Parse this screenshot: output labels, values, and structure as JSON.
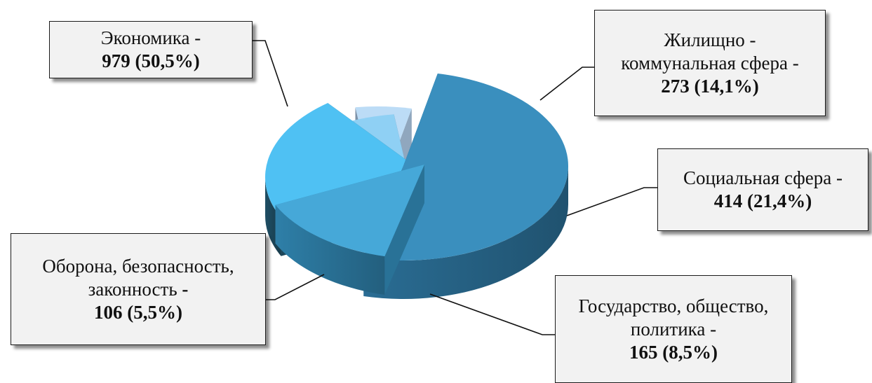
{
  "chart_data": {
    "type": "pie",
    "title": "",
    "exploded": true,
    "three_d": true,
    "slices": [
      {
        "name": "Экономика -",
        "value_label": "979 (50,5%)",
        "value": 979,
        "percent": 50.5,
        "color": "#3a8fbe",
        "side_color": "#2a6d94"
      },
      {
        "name": "Жилищно - коммунальная сфера -",
        "value_label": "273 (14,1%)",
        "value": 273,
        "percent": 14.1,
        "color": "#46a8d8",
        "side_color": "#2e7fa8"
      },
      {
        "name": "Социальная сфера -",
        "value_label": "414 (21,4%)",
        "value": 414,
        "percent": 21.4,
        "color": "#4fc1f3",
        "side_color": "#1f4e64"
      },
      {
        "name": "Государство, общество, политика -",
        "value_label": "165 (8,5%)",
        "value": 165,
        "percent": 8.5,
        "color": "#8fd0f4",
        "side_color": "#4a6f8a"
      },
      {
        "name": "Оборона, безопасность, законность",
        "name_suffix": " -",
        "value_label": "106 (5,5%)",
        "value": 106,
        "percent": 5.5,
        "color": "#bcdcf6",
        "side_color": "#8aa2bb"
      }
    ]
  }
}
